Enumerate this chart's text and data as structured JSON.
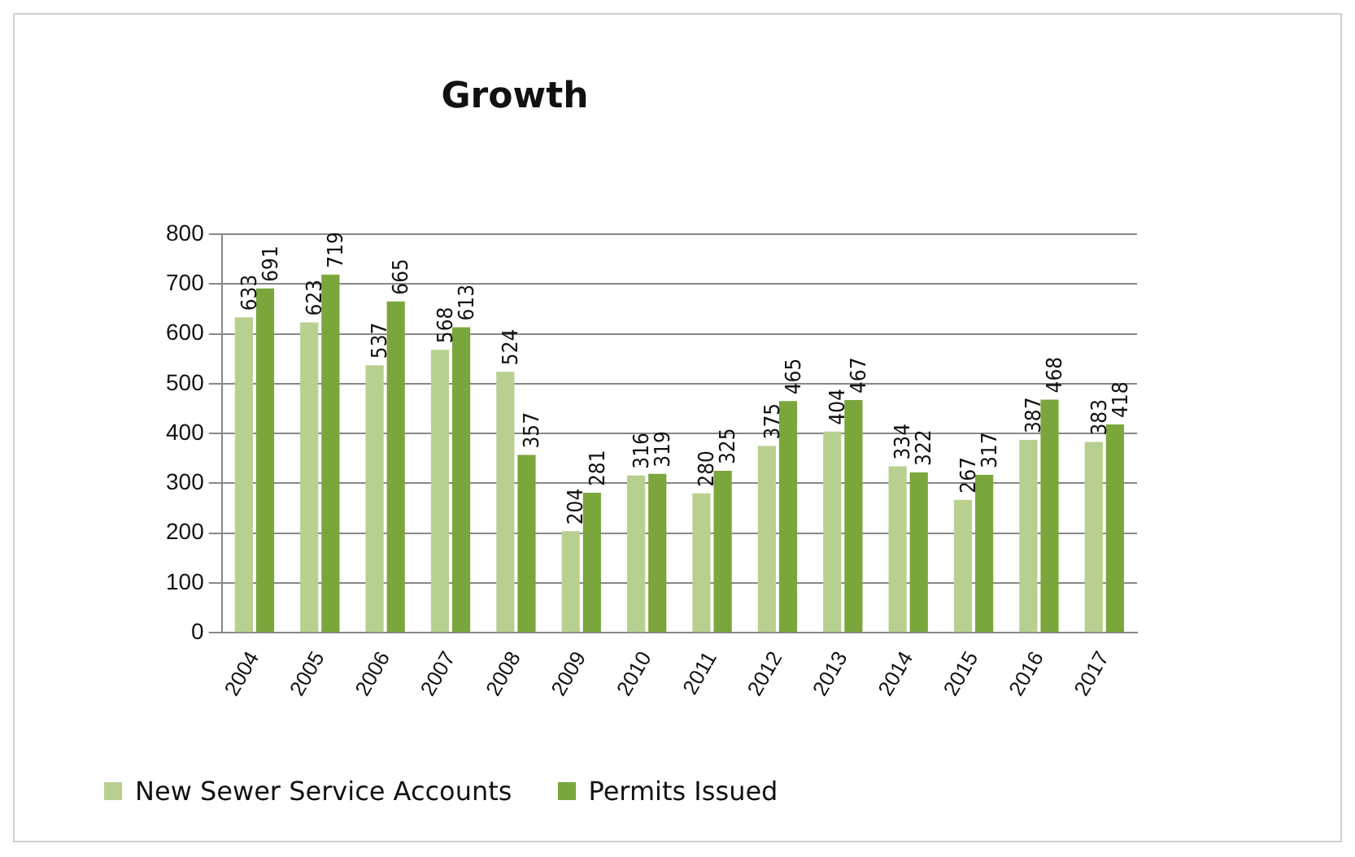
{
  "chart_data": {
    "type": "bar",
    "title": "Growth",
    "categories": [
      "2004",
      "2005",
      "2006",
      "2007",
      "2008",
      "2009",
      "2010",
      "2011",
      "2012",
      "2013",
      "2014",
      "2015",
      "2016",
      "2017"
    ],
    "series": [
      {
        "name": "New Sewer Service Accounts",
        "color": "#b7d08f",
        "values": [
          633,
          623,
          537,
          568,
          524,
          204,
          316,
          280,
          375,
          404,
          334,
          267,
          387,
          383
        ]
      },
      {
        "name": "Permits Issued",
        "color": "#7aa63c",
        "values": [
          691,
          719,
          665,
          613,
          357,
          281,
          319,
          325,
          465,
          467,
          322,
          317,
          468,
          418
        ]
      }
    ],
    "ylim": [
      0,
      800
    ],
    "yticks": [
      0,
      100,
      200,
      300,
      400,
      500,
      600,
      700,
      800
    ],
    "grid": "y",
    "legend": "bottom left",
    "data_labels": true
  }
}
